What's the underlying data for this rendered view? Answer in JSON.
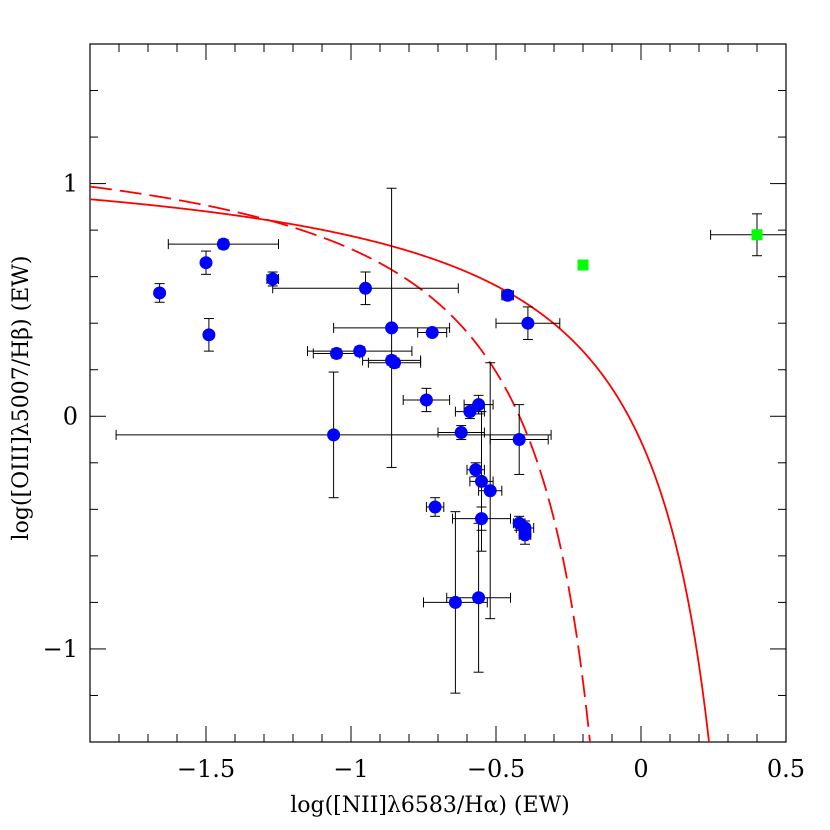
{
  "chart_data": {
    "type": "scatter",
    "xlabel": "log([NII]λ6583/Hα) (EW)",
    "ylabel": "log([OIII]λ5007/Hβ) (EW)",
    "xlim": [
      -1.9,
      0.5
    ],
    "ylim": [
      -1.4,
      1.6
    ],
    "x_ticks": [
      -1.5,
      -1,
      -0.5,
      0,
      0.5
    ],
    "x_tick_labels": [
      "−1.5",
      "−1",
      "−0.5",
      "0",
      "0.5"
    ],
    "y_ticks": [
      -1,
      0,
      1
    ],
    "y_tick_labels": [
      "−1",
      "0",
      "1"
    ],
    "grid": false,
    "series": [
      {
        "marker": "circle",
        "color": "#0000ff",
        "points": [
          {
            "x": -1.66,
            "y": 0.53,
            "xerr": 0.0,
            "yerr": 0.04
          },
          {
            "x": -1.5,
            "y": 0.66,
            "xerr": 0.0,
            "yerr": 0.05
          },
          {
            "x": -1.44,
            "y": 0.74,
            "xerr": 0.19,
            "yerr": 0.02
          },
          {
            "x": -1.27,
            "y": 0.59,
            "xerr": 0.02,
            "yerr": 0.03
          },
          {
            "x": -1.49,
            "y": 0.35,
            "xerr": 0.0,
            "yerr": 0.07
          },
          {
            "x": -0.95,
            "y": 0.55,
            "xerr": 0.32,
            "yerr": 0.07
          },
          {
            "x": -0.86,
            "y": 0.38,
            "xerr": 0.2,
            "yerr": 0.6
          },
          {
            "x": -0.72,
            "y": 0.36,
            "xerr": 0.05,
            "yerr": 0.01
          },
          {
            "x": -1.05,
            "y": 0.27,
            "xerr": 0.08,
            "yerr": 0.02
          },
          {
            "x": -0.97,
            "y": 0.28,
            "xerr": 0.18,
            "yerr": 0.02
          },
          {
            "x": -0.86,
            "y": 0.24,
            "xerr": 0.1,
            "yerr": 0.02
          },
          {
            "x": -0.85,
            "y": 0.23,
            "xerr": 0.09,
            "yerr": 0.02
          },
          {
            "x": -0.74,
            "y": 0.07,
            "xerr": 0.08,
            "yerr": 0.05
          },
          {
            "x": -1.06,
            "y": -0.08,
            "xerr": 0.75,
            "yerr": 0.27
          },
          {
            "x": -0.59,
            "y": 0.02,
            "xerr": 0.05,
            "yerr": 0.03
          },
          {
            "x": -0.56,
            "y": 0.05,
            "xerr": 0.05,
            "yerr": 0.04
          },
          {
            "x": -0.62,
            "y": -0.07,
            "xerr": 0.08,
            "yerr": 0.03
          },
          {
            "x": -0.42,
            "y": -0.1,
            "xerr": 0.1,
            "yerr": 0.15
          },
          {
            "x": -0.57,
            "y": -0.23,
            "xerr": 0.03,
            "yerr": 0.03
          },
          {
            "x": -0.55,
            "y": -0.28,
            "xerr": 0.04,
            "yerr": 0.3
          },
          {
            "x": -0.52,
            "y": -0.32,
            "xerr": 0.04,
            "yerr": 0.55
          },
          {
            "x": -0.71,
            "y": -0.39,
            "xerr": 0.03,
            "yerr": 0.04
          },
          {
            "x": -0.55,
            "y": -0.44,
            "xerr": 0.1,
            "yerr": 0.05
          },
          {
            "x": -0.42,
            "y": -0.46,
            "xerr": 0.02,
            "yerr": 0.03
          },
          {
            "x": -0.4,
            "y": -0.48,
            "xerr": 0.03,
            "yerr": 0.03
          },
          {
            "x": -0.4,
            "y": -0.51,
            "xerr": 0.02,
            "yerr": 0.04
          },
          {
            "x": -0.64,
            "y": -0.8,
            "xerr": 0.11,
            "yerr": 0.39
          },
          {
            "x": -0.56,
            "y": -0.78,
            "xerr": 0.11,
            "yerr": 0.32
          },
          {
            "x": -0.46,
            "y": 0.52,
            "xerr": 0.02,
            "yerr": 0.02
          },
          {
            "x": -0.39,
            "y": 0.4,
            "xerr": 0.11,
            "yerr": 0.07
          }
        ]
      },
      {
        "marker": "square",
        "color": "#00ff00",
        "points": [
          {
            "x": -0.2,
            "y": 0.65,
            "xerr": 0.01,
            "yerr": 0.02
          },
          {
            "x": 0.4,
            "y": 0.78,
            "xerr": 0.16,
            "yerr": 0.09
          }
        ]
      }
    ],
    "curves": [
      {
        "style": "solid",
        "color": "#ff0000",
        "formula": "y = 0.61/(x - 0.47) + 1.19"
      },
      {
        "style": "dashed",
        "color": "#ff0000",
        "formula": "y = 0.61/(x - 0.05) + 1.30"
      }
    ]
  }
}
